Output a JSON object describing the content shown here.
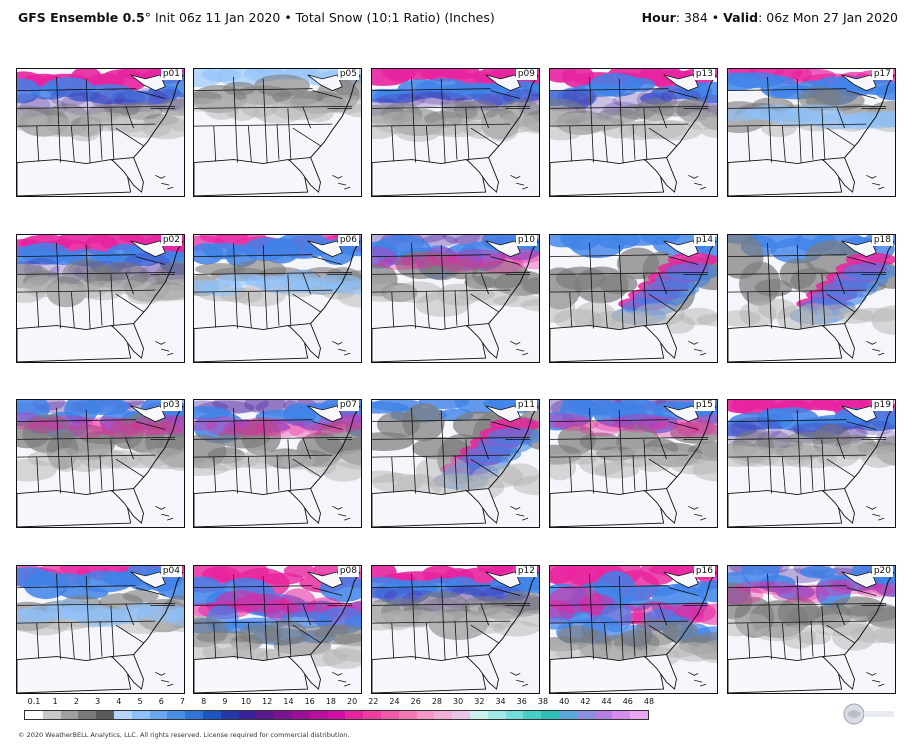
{
  "header": {
    "model": "GFS Ensemble 0.5",
    "degree": "°",
    "init": "Init 06z 11 Jan 2020",
    "bullet": "•",
    "field": "Total Snow (10:1 Ratio) (Inches)",
    "hour_label": "Hour",
    "hour_value": ": 384",
    "valid_label": "Valid",
    "valid_value": ": 06z Mon 27 Jan 2020"
  },
  "panels": [
    {
      "id": "p01",
      "pattern": "north-heavy"
    },
    {
      "id": "p05",
      "pattern": "light"
    },
    {
      "id": "p09",
      "pattern": "north-heavy"
    },
    {
      "id": "p13",
      "pattern": "north-heavy"
    },
    {
      "id": "p17",
      "pattern": "north-moderate"
    },
    {
      "id": "p02",
      "pattern": "north-heavy"
    },
    {
      "id": "p06",
      "pattern": "north-moderate"
    },
    {
      "id": "p10",
      "pattern": "broad-blue"
    },
    {
      "id": "p14",
      "pattern": "appalachian-band"
    },
    {
      "id": "p18",
      "pattern": "appalachian-band"
    },
    {
      "id": "p03",
      "pattern": "broad-blue"
    },
    {
      "id": "p07",
      "pattern": "broad-blue"
    },
    {
      "id": "p11",
      "pattern": "appalachian-band"
    },
    {
      "id": "p15",
      "pattern": "broad-blue"
    },
    {
      "id": "p19",
      "pattern": "north-heavy"
    },
    {
      "id": "p04",
      "pattern": "north-moderate"
    },
    {
      "id": "p08",
      "pattern": "deep-south"
    },
    {
      "id": "p12",
      "pattern": "north-heavy"
    },
    {
      "id": "p16",
      "pattern": "deep-south"
    },
    {
      "id": "p20",
      "pattern": "broad-blue"
    }
  ],
  "legend": {
    "ticks": [
      "0.1",
      "1",
      "2",
      "3",
      "4",
      "5",
      "6",
      "7",
      "8",
      "9",
      "10",
      "12",
      "14",
      "16",
      "18",
      "20",
      "22",
      "24",
      "26",
      "28",
      "30",
      "32",
      "34",
      "36",
      "38",
      "40",
      "42",
      "44",
      "46",
      "48"
    ],
    "colors": [
      "#ffffff",
      "#c8c8c8",
      "#a0a0a0",
      "#7a7a7a",
      "#5a5a5a",
      "#b3d7ff",
      "#8ec1fb",
      "#6aa8f2",
      "#4a8fe6",
      "#2f74d6",
      "#1c56c2",
      "#2538a8",
      "#3c1f9a",
      "#5a1a8f",
      "#7a1490",
      "#9a1098",
      "#bb0fa0",
      "#d410a4",
      "#e8239f",
      "#f03c9e",
      "#f55aa8",
      "#f77ab6",
      "#f797c6",
      "#f2b0d6",
      "#e9c4e4",
      "#c8f0ef",
      "#9fe8e5",
      "#72ddd9",
      "#49cfc9",
      "#2fbfb8",
      "#59a8d9",
      "#8a8fe0",
      "#b57ee2",
      "#d68cec",
      "#e8a8f4"
    ],
    "unit": "Inches"
  },
  "copyright": "© 2020 WeatherBELL Analytics, LLC. All rights reserved. License required for commercial distribution.",
  "logo_text": "WeatherBELL"
}
